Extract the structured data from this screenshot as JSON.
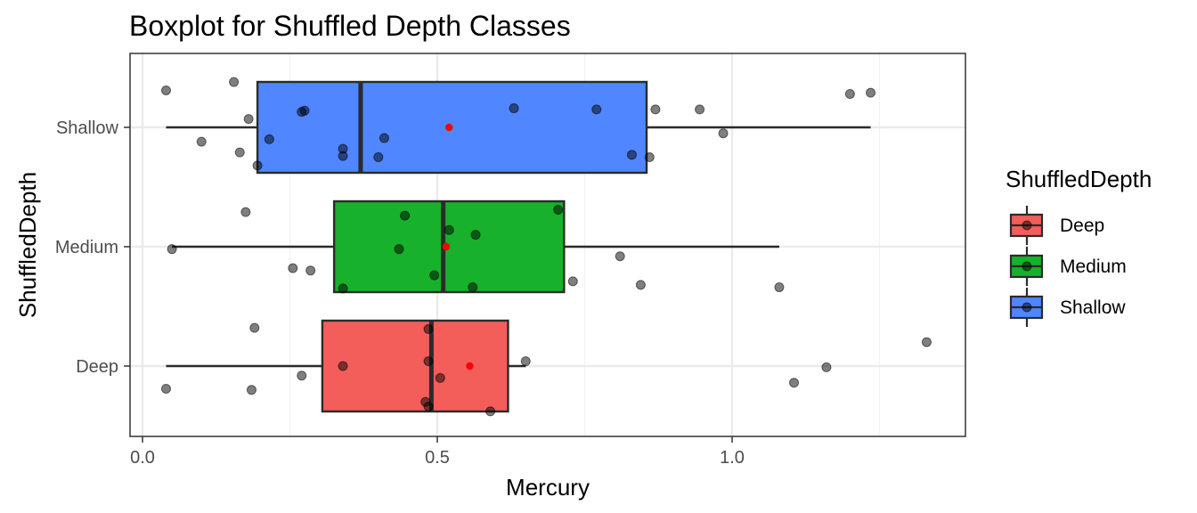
{
  "chart_data": {
    "type": "boxplot",
    "title": "Boxplot for Shuffled Depth Classes",
    "xlabel": "Mercury",
    "ylabel": "ShuffledDepth",
    "xlim": [
      -0.03,
      1.4
    ],
    "xticks": [
      0.0,
      0.5,
      1.0
    ],
    "xtick_labels": [
      "0.0",
      "0.5",
      "1.0"
    ],
    "categories": [
      "Deep",
      "Medium",
      "Shallow"
    ],
    "grid": true,
    "legend": {
      "title": "ShuffledDepth",
      "position": "right",
      "entries": [
        "Deep",
        "Medium",
        "Shallow"
      ]
    },
    "colors": {
      "Deep": "#f35e5a",
      "Medium": "#17b12b",
      "Shallow": "#5086ff",
      "mean": "#ff0000"
    },
    "series": [
      {
        "name": "Deep",
        "whisker_low": 0.04,
        "q1": 0.305,
        "median": 0.49,
        "q3": 0.62,
        "whisker_high": 0.65,
        "mean": 0.555,
        "points": [
          [
            0.04,
            -0.19
          ],
          [
            0.185,
            -0.2
          ],
          [
            0.19,
            0.32
          ],
          [
            0.27,
            -0.08
          ],
          [
            0.34,
            0.0
          ],
          [
            0.48,
            -0.3
          ],
          [
            0.485,
            -0.34
          ],
          [
            0.485,
            0.31
          ],
          [
            0.485,
            0.04
          ],
          [
            0.505,
            -0.1
          ],
          [
            0.59,
            -0.38
          ],
          [
            0.65,
            0.04
          ],
          [
            1.105,
            -0.14
          ],
          [
            1.16,
            -0.01
          ],
          [
            1.33,
            0.2
          ]
        ]
      },
      {
        "name": "Medium",
        "whisker_low": 0.05,
        "q1": 0.325,
        "median": 0.51,
        "q3": 0.715,
        "whisker_high": 1.08,
        "mean": 0.515,
        "points": [
          [
            0.05,
            -0.02
          ],
          [
            0.175,
            0.29
          ],
          [
            0.255,
            -0.18
          ],
          [
            0.285,
            -0.2
          ],
          [
            0.34,
            -0.35
          ],
          [
            0.435,
            -0.02
          ],
          [
            0.445,
            0.26
          ],
          [
            0.495,
            -0.24
          ],
          [
            0.52,
            0.14
          ],
          [
            0.56,
            -0.34
          ],
          [
            0.565,
            0.1
          ],
          [
            0.705,
            0.31
          ],
          [
            0.73,
            -0.29
          ],
          [
            0.81,
            -0.08
          ],
          [
            0.845,
            -0.32
          ],
          [
            1.08,
            -0.34
          ]
        ]
      },
      {
        "name": "Shallow",
        "whisker_low": 0.04,
        "q1": 0.195,
        "median": 0.37,
        "q3": 0.855,
        "whisker_high": 1.235,
        "mean": 0.52,
        "points": [
          [
            0.04,
            0.31
          ],
          [
            0.1,
            -0.12
          ],
          [
            0.155,
            0.38
          ],
          [
            0.165,
            -0.21
          ],
          [
            0.18,
            0.07
          ],
          [
            0.195,
            -0.32
          ],
          [
            0.215,
            -0.1
          ],
          [
            0.27,
            0.13
          ],
          [
            0.275,
            0.14
          ],
          [
            0.34,
            -0.18
          ],
          [
            0.34,
            -0.24
          ],
          [
            0.4,
            -0.25
          ],
          [
            0.41,
            -0.09
          ],
          [
            0.63,
            0.16
          ],
          [
            0.77,
            0.15
          ],
          [
            0.83,
            -0.23
          ],
          [
            0.86,
            -0.25
          ],
          [
            0.87,
            0.15
          ],
          [
            0.945,
            0.15
          ],
          [
            0.985,
            -0.05
          ],
          [
            1.2,
            0.28
          ],
          [
            1.235,
            0.29
          ]
        ]
      }
    ]
  }
}
